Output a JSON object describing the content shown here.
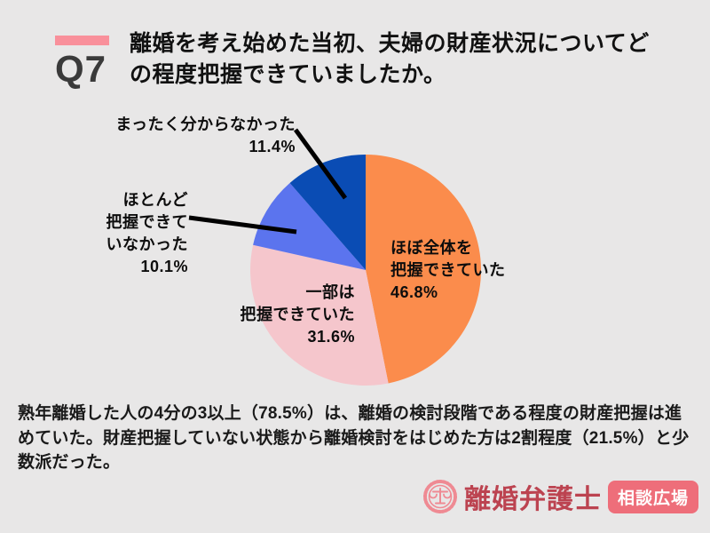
{
  "header": {
    "q_label": "Q7",
    "title_line1": "離婚を考え始めた当初、夫婦の財産状況についてど",
    "title_line2": "の程度把握できていましたか。",
    "accent_bar_color": "#f9909b"
  },
  "chart_data": {
    "type": "pie",
    "title": "離婚を考え始めた当初、夫婦の財産状況についてどの程度把握できていましたか。",
    "start_angle": "12-oclock",
    "direction": "clockwise",
    "legend_position": "callout-labels",
    "segments": [
      {
        "label": "ほぼ全体を把握できていた",
        "value": 46.8,
        "color": "#fb8c4c"
      },
      {
        "label": "一部は把握できていた",
        "value": 31.6,
        "color": "#f5c6cc"
      },
      {
        "label": "ほとんど把握できていなかった",
        "value": 10.1,
        "color": "#5b74ee"
      },
      {
        "label": "まったく分からなかった",
        "value": 11.4,
        "color": "#0a4cb4"
      }
    ],
    "callout_labels": {
      "full": "ほぼ全体を\n把握できていた\n46.8%",
      "partial": "一部は\n把握できていた\n31.6%",
      "little": "ほとんど\n把握できて\nいなかった\n10.1%",
      "none": "まったく分からなかった\n11.4%"
    }
  },
  "summary": {
    "text": "熟年離婚した人の4分の3以上（78.5%）は、離婚の検討段階である程度の財産把握は進めていた。財産把握していない状態から離婚検討をはじめた方は2割程度（21.5%）と少数派だった。"
  },
  "footer": {
    "brand": "離婚弁護士",
    "badge": "相談広場",
    "brand_color": "#bc4350",
    "badge_bg": "#ee6e7a",
    "emblem_icon": "scales-emblem-icon",
    "emblem_color": "#ef8a93"
  }
}
